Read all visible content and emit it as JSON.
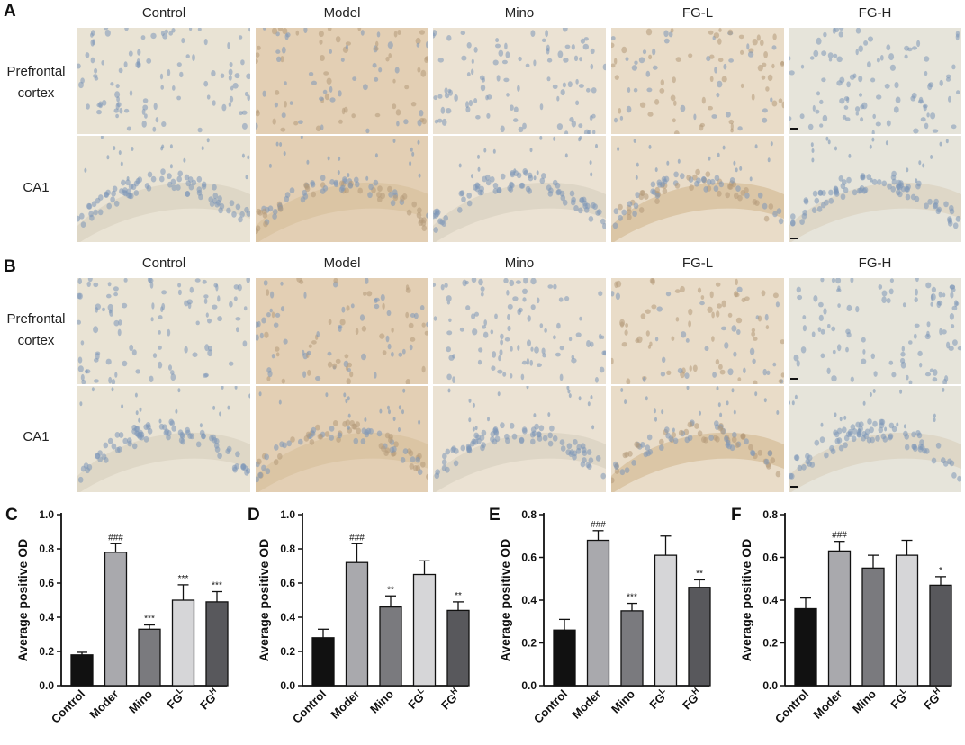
{
  "panel_letters": {
    "A": "A",
    "B": "B",
    "C": "C",
    "D": "D",
    "E": "E",
    "F": "F"
  },
  "groups": [
    "Control",
    "Model",
    "Mino",
    "FG-L",
    "FG-H"
  ],
  "row_labels": {
    "prefrontal_line1": "Prefrontal",
    "prefrontal_line2": "cortex",
    "ca1": "CA1"
  },
  "tissue_colors": {
    "control": "#e9e3d4",
    "model": "#e3cfb4",
    "mino": "#ebe2d3",
    "fgl": "#e9dcc8",
    "fgh": "#e6e4da",
    "nucleus_blue": "#7d98b8",
    "nucleus_brown": "#b49a7a"
  },
  "bar_colors": [
    "#111111",
    "#a9a9ad",
    "#7a7a7e",
    "#d6d6d8",
    "#58585c"
  ],
  "chart_data": [
    {
      "type": "bar",
      "panel": "C",
      "categories": [
        "Control",
        "Moder",
        "Mino",
        "FG",
        "FG"
      ],
      "category_superscripts": [
        "",
        "",
        "",
        "L",
        "H"
      ],
      "values": [
        0.18,
        0.78,
        0.33,
        0.5,
        0.49
      ],
      "errors": [
        0.015,
        0.05,
        0.025,
        0.09,
        0.06
      ],
      "annotations": [
        "",
        "###",
        "***",
        "***",
        "***"
      ],
      "ylabel": "Average positive OD",
      "ylim": [
        0,
        1.0
      ],
      "yticks": [
        "0.0",
        "0.2",
        "0.4",
        "0.6",
        "0.8",
        "1.0"
      ]
    },
    {
      "type": "bar",
      "panel": "D",
      "categories": [
        "Control",
        "Moder",
        "Mino",
        "FG",
        "FG"
      ],
      "category_superscripts": [
        "",
        "",
        "",
        "L",
        "H"
      ],
      "values": [
        0.28,
        0.72,
        0.46,
        0.65,
        0.44
      ],
      "errors": [
        0.05,
        0.11,
        0.065,
        0.08,
        0.05
      ],
      "annotations": [
        "",
        "###",
        "**",
        "",
        "**"
      ],
      "ylabel": "Average positive OD",
      "ylim": [
        0,
        1.0
      ],
      "yticks": [
        "0.0",
        "0.2",
        "0.4",
        "0.6",
        "0.8",
        "1.0"
      ]
    },
    {
      "type": "bar",
      "panel": "E",
      "categories": [
        "Control",
        "Moder",
        "Mino",
        "FG",
        "FG"
      ],
      "category_superscripts": [
        "",
        "",
        "",
        "L",
        "H"
      ],
      "values": [
        0.26,
        0.68,
        0.35,
        0.61,
        0.46
      ],
      "errors": [
        0.05,
        0.045,
        0.035,
        0.09,
        0.035
      ],
      "annotations": [
        "",
        "###",
        "***",
        "",
        "**"
      ],
      "ylabel": "Average positive OD",
      "ylim": [
        0,
        0.8
      ],
      "yticks": [
        "0.0",
        "0.2",
        "0.4",
        "0.6",
        "0.8"
      ]
    },
    {
      "type": "bar",
      "panel": "F",
      "categories": [
        "Control",
        "Moder",
        "Mino",
        "FG",
        "FG"
      ],
      "category_superscripts": [
        "",
        "",
        "",
        "L",
        "H"
      ],
      "values": [
        0.36,
        0.63,
        0.55,
        0.61,
        0.47
      ],
      "errors": [
        0.05,
        0.045,
        0.06,
        0.07,
        0.04
      ],
      "annotations": [
        "",
        "###",
        "",
        "",
        "*"
      ],
      "ylabel": "Average positive OD",
      "ylim": [
        0,
        0.8
      ],
      "yticks": [
        "0.0",
        "0.2",
        "0.4",
        "0.6",
        "0.8"
      ]
    }
  ]
}
